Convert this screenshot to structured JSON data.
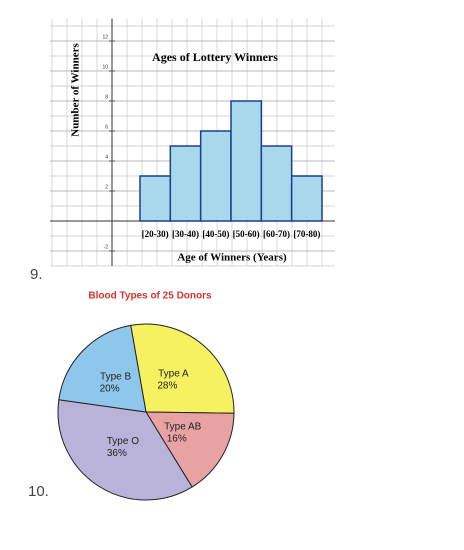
{
  "problem_numbers": [
    "9.",
    "10."
  ],
  "chart_data": [
    {
      "type": "bar",
      "title": "Ages of Lottery Winners",
      "x_label": "Age of Winners (Years)",
      "y_label": "Number of Winners",
      "categories": [
        "[20-30)",
        "[30-40)",
        "[40-50)",
        "[50-60)",
        "[60-70)",
        "[70-80)"
      ],
      "values": [
        3,
        5,
        6,
        8,
        5,
        3
      ],
      "color": "#a9d8ec",
      "ylim": [
        -3,
        13.5
      ],
      "yticks": [
        -2,
        2,
        4,
        6,
        8,
        10,
        12
      ],
      "grid": true
    },
    {
      "type": "pie",
      "title": "Blood Types of 25 Donors",
      "categories": [
        "Type A",
        "Type AB",
        "Type O",
        "Type B"
      ],
      "values": [
        28,
        16,
        36,
        20
      ],
      "value_labels": [
        "28%",
        "16%",
        "36%",
        "20%"
      ],
      "colors": [
        "#f6f160",
        "#e8a2a4",
        "#b9b3d9",
        "#8fc6ec"
      ]
    }
  ]
}
